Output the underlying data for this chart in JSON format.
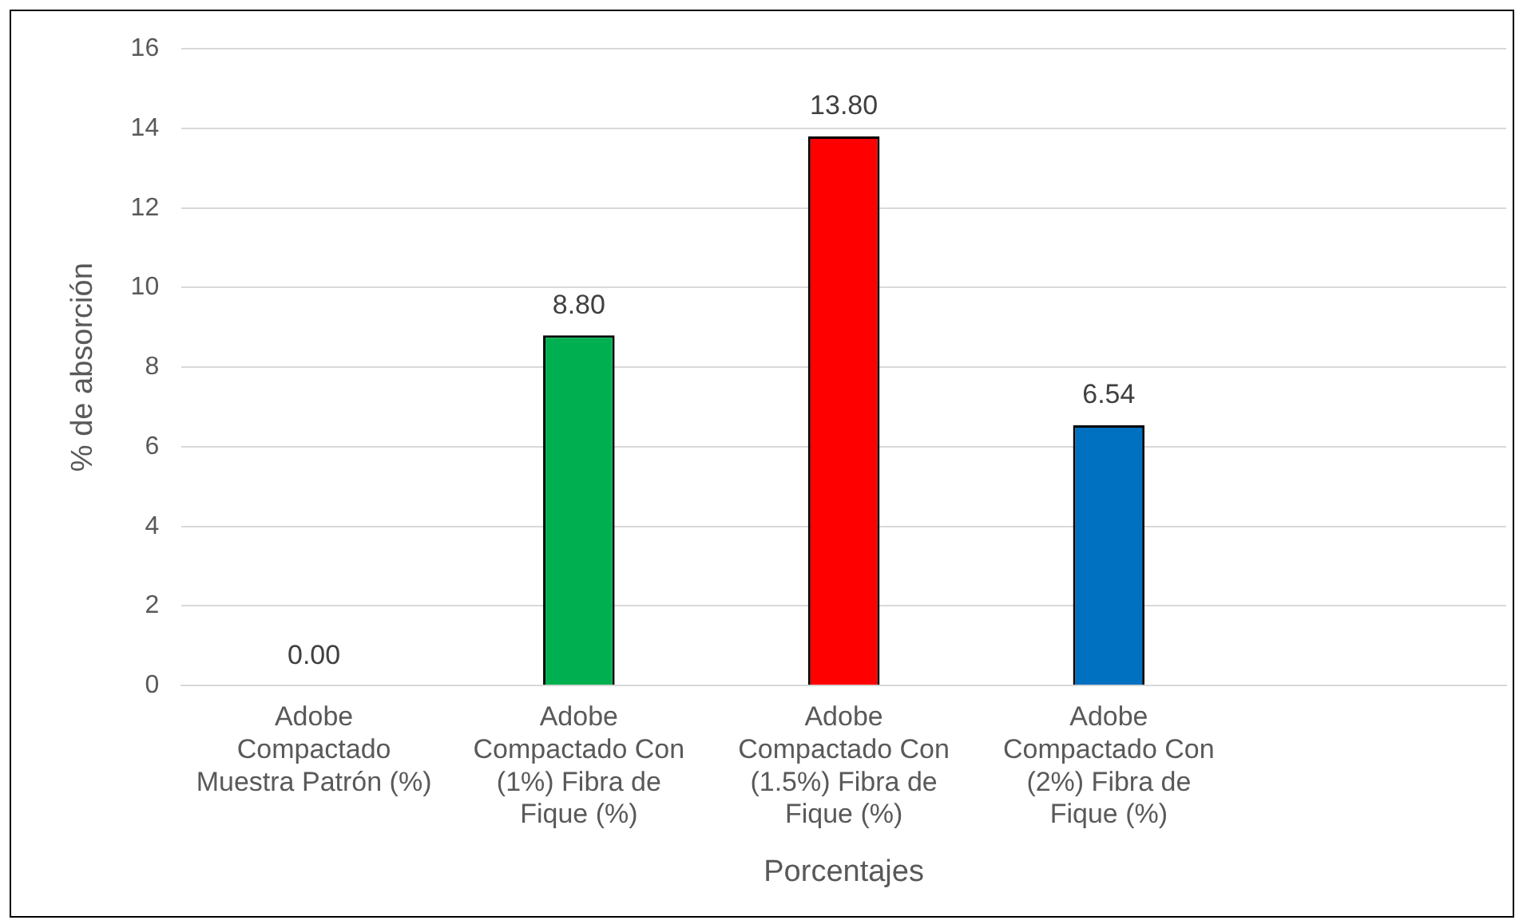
{
  "chart_data": {
    "type": "bar",
    "xlabel": "Porcentajes",
    "ylabel": "% de absorción",
    "categories": [
      "Adobe Compactado Muestra Patrón (%)",
      "Adobe Compactado Con (1%) Fibra de Fique (%)",
      "Adobe Compactado Con (1.5%) Fibra de Fique (%)",
      "Adobe Compactado Con (2%) Fibra de Fique (%)",
      null
    ],
    "values": [
      0,
      8.8,
      13.8,
      6.54,
      null
    ],
    "colors": [
      "#a5a5a5",
      "#00b050",
      "#ff0000",
      "#0070c0",
      "#a5a5a5"
    ],
    "value_labels": [
      "0.00",
      "8.80",
      "13.80",
      "6.54",
      null
    ],
    "ylim": [
      0,
      16
    ],
    "yticks": [
      0,
      2,
      4,
      6,
      8,
      10,
      12,
      14,
      16
    ],
    "grid": "y",
    "legend": false
  }
}
